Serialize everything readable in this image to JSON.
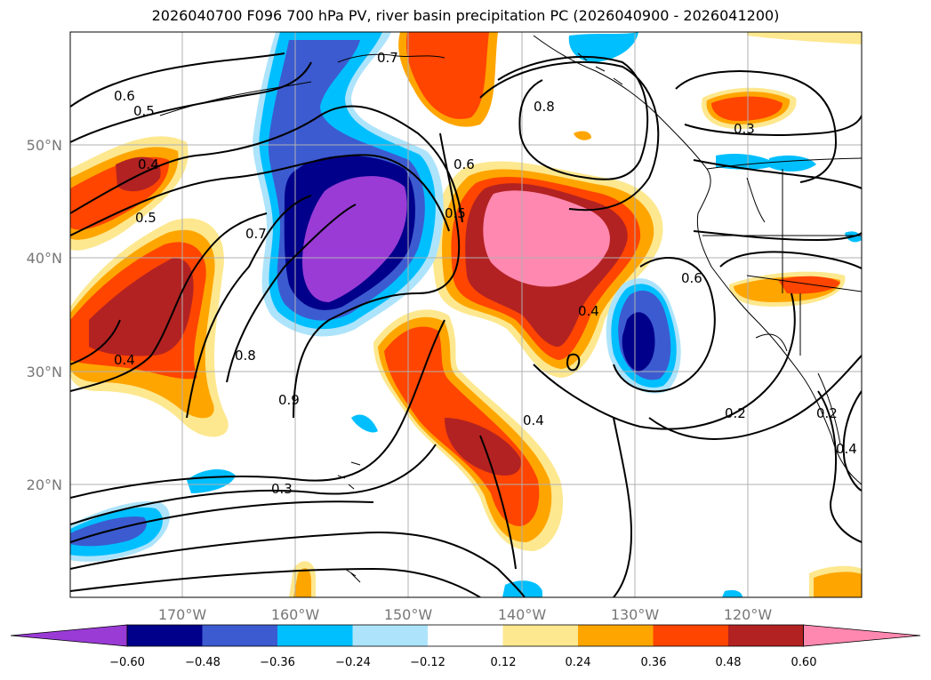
{
  "title": "2026040700 F096 700 hPa PV, river basin precipitation PC (2026040900 - 2026041200)",
  "map": {
    "lat_ticks": [
      "50°N",
      "40°N",
      "30°N",
      "20°N"
    ],
    "lon_ticks": [
      "170°W",
      "160°W",
      "150°W",
      "140°W",
      "130°W",
      "120°W"
    ],
    "contour_labels": [
      "0.6",
      "0.5",
      "0.4",
      "0.5",
      "0.7",
      "0.8",
      "0.4",
      "0.9",
      "0.3",
      "0.6",
      "0.5",
      "0.8",
      "0.4",
      "0.4",
      "0.6",
      "0.2",
      "0.3",
      "0.2",
      "0.4",
      "0.7"
    ],
    "grid": true,
    "colors": {
      "grid": "#b0b0b0",
      "contour": "#000000",
      "coast": "#000000"
    }
  },
  "colorbar": {
    "ticks": [
      "−0.60",
      "−0.48",
      "−0.36",
      "−0.24",
      "−0.12",
      "0.12",
      "0.24",
      "0.36",
      "0.48",
      "0.60"
    ],
    "colors": [
      "#9a3bd6",
      "#00008b",
      "#3c5bd0",
      "#00bfff",
      "#ade4fb",
      "#ffffff",
      "#fde88f",
      "#ffa500",
      "#ff4500",
      "#b22222",
      "#ff88b0"
    ]
  },
  "chart_data": {
    "type": "heatmap",
    "title": "2026040700 F096 700 hPa PV, river basin precipitation PC (2026040900 - 2026041200)",
    "xlabel": "",
    "ylabel": "",
    "x_ticks": [
      "170°W",
      "160°W",
      "150°W",
      "140°W",
      "130°W",
      "120°W"
    ],
    "y_ticks": [
      "50°N",
      "40°N",
      "30°N",
      "20°N"
    ],
    "xlim": [
      -180,
      -110
    ],
    "ylim": [
      10,
      60
    ],
    "colorbar_levels": [
      -0.6,
      -0.48,
      -0.36,
      -0.24,
      -0.12,
      0.12,
      0.24,
      0.36,
      0.48,
      0.6
    ],
    "contour_levels_labeled": [
      0.2,
      0.3,
      0.4,
      0.5,
      0.6,
      0.7,
      0.8,
      0.9
    ]
  }
}
